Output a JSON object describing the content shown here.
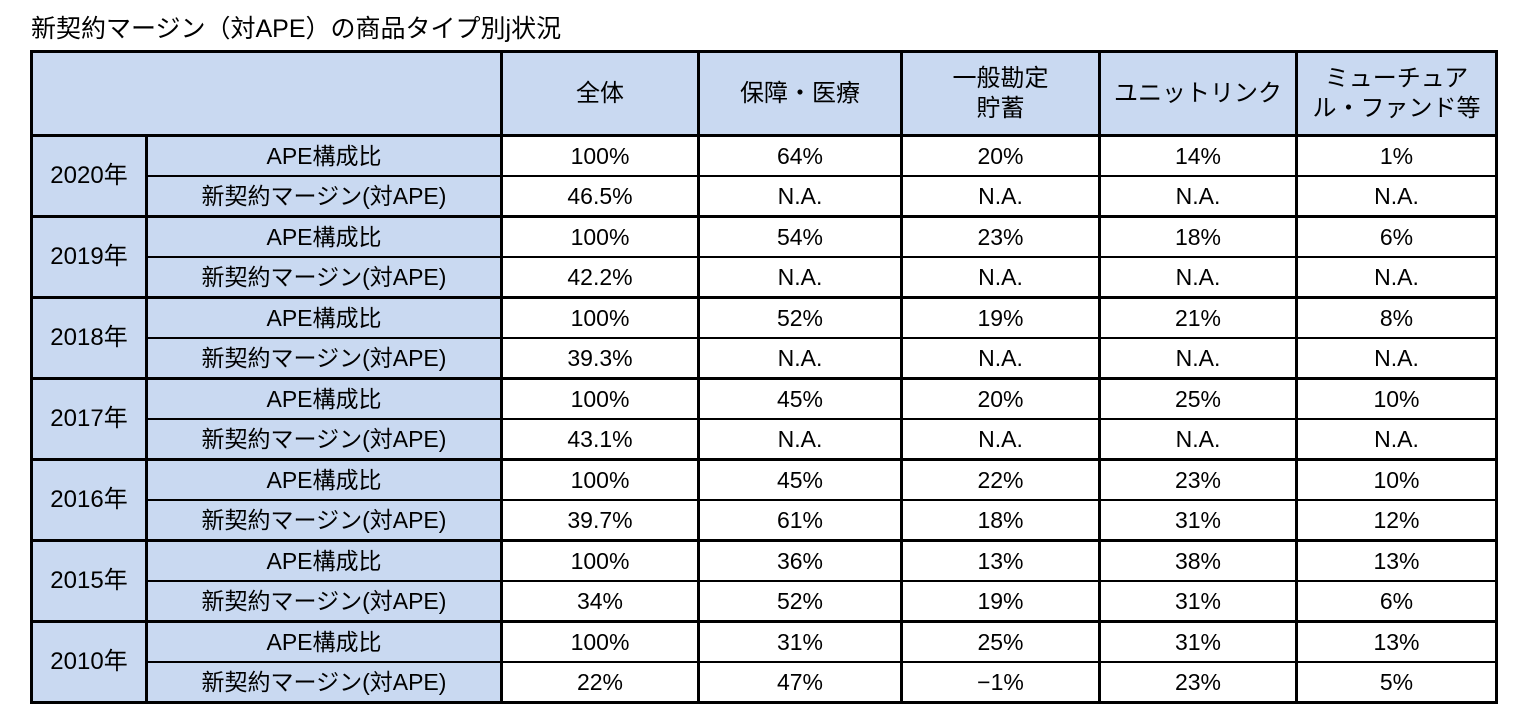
{
  "chart_data": {
    "type": "table",
    "title": "新契約マージン（対APE）の商品タイプ別j状況",
    "column_headers": [
      "全体",
      "保障・医療",
      "一般勘定\n貯蓄",
      "ユニットリンク",
      "ミューチュア\nル・ファンド等"
    ],
    "row_labels": {
      "ape": "APE構成比",
      "margin": "新契約マージン(対APE)"
    },
    "groups": [
      {
        "year": "2020年",
        "ape": [
          "100%",
          "64%",
          "20%",
          "14%",
          "1%"
        ],
        "margin": [
          "46.5%",
          "N.A.",
          "N.A.",
          "N.A.",
          "N.A."
        ]
      },
      {
        "year": "2019年",
        "ape": [
          "100%",
          "54%",
          "23%",
          "18%",
          "6%"
        ],
        "margin": [
          "42.2%",
          "N.A.",
          "N.A.",
          "N.A.",
          "N.A."
        ]
      },
      {
        "year": "2018年",
        "ape": [
          "100%",
          "52%",
          "19%",
          "21%",
          "8%"
        ],
        "margin": [
          "39.3%",
          "N.A.",
          "N.A.",
          "N.A.",
          "N.A."
        ]
      },
      {
        "year": "2017年",
        "ape": [
          "100%",
          "45%",
          "20%",
          "25%",
          "10%"
        ],
        "margin": [
          "43.1%",
          "N.A.",
          "N.A.",
          "N.A.",
          "N.A."
        ]
      },
      {
        "year": "2016年",
        "ape": [
          "100%",
          "45%",
          "22%",
          "23%",
          "10%"
        ],
        "margin": [
          "39.7%",
          "61%",
          "18%",
          "31%",
          "12%"
        ]
      },
      {
        "year": "2015年",
        "ape": [
          "100%",
          "36%",
          "13%",
          "38%",
          "13%"
        ],
        "margin": [
          "34%",
          "52%",
          "19%",
          "31%",
          "6%"
        ]
      },
      {
        "year": "2010年",
        "ape": [
          "100%",
          "31%",
          "25%",
          "31%",
          "13%"
        ],
        "margin": [
          "22%",
          "47%",
          "−1%",
          "23%",
          "5%"
        ]
      }
    ],
    "layout_hints": {
      "grid": "on",
      "header_cells_shaded": true,
      "value_cells_plain": true
    },
    "colors": {
      "header_bg": "#C9D9F1",
      "cell_bg": "#FFFFFF",
      "border": "#000000",
      "text": "#000000"
    }
  }
}
